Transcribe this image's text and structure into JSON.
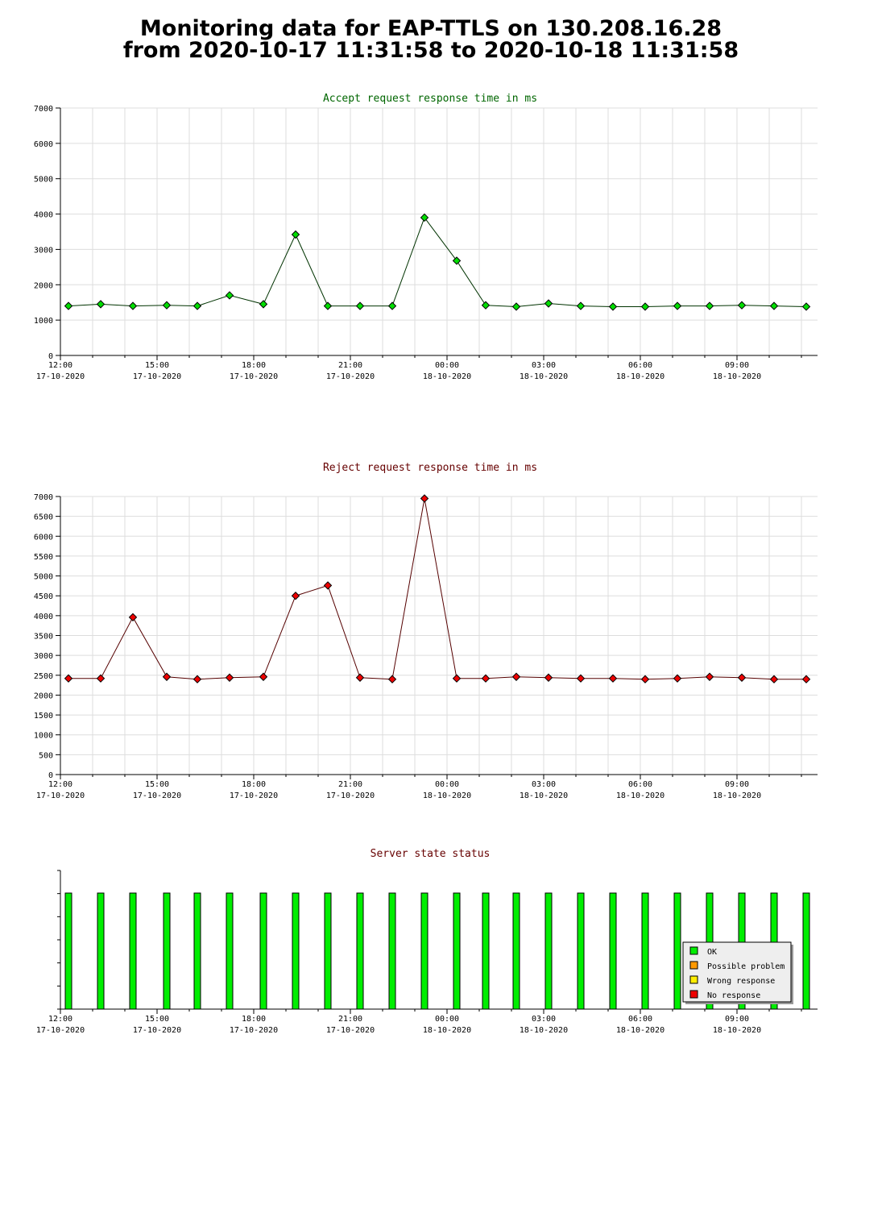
{
  "page": {
    "title_line1": "Monitoring data for EAP-TTLS on 130.208.16.28",
    "title_line2": "from 2020-10-17 11:31:58 to 2020-10-18 11:31:58"
  },
  "x_axis": {
    "ticks": [
      {
        "time": "12:00",
        "date": "17-10-2020",
        "hours": 0
      },
      {
        "time": "15:00",
        "date": "17-10-2020",
        "hours": 3
      },
      {
        "time": "18:00",
        "date": "17-10-2020",
        "hours": 6
      },
      {
        "time": "21:00",
        "date": "17-10-2020",
        "hours": 9
      },
      {
        "time": "00:00",
        "date": "18-10-2020",
        "hours": 12
      },
      {
        "time": "03:00",
        "date": "18-10-2020",
        "hours": 15
      },
      {
        "time": "06:00",
        "date": "18-10-2020",
        "hours": 18
      },
      {
        "time": "09:00",
        "date": "18-10-2020",
        "hours": 21
      }
    ]
  },
  "chart_data": [
    {
      "type": "line",
      "title": "Accept request response time in ms",
      "color": "#00dd00",
      "line_color": "#003300",
      "title_color": "#006600",
      "ylim": [
        0,
        7000
      ],
      "ytick_step": 1000,
      "grid": true,
      "x_hours": [
        0.25,
        1.25,
        2.25,
        3.3,
        4.25,
        5.25,
        6.3,
        7.3,
        8.3,
        9.3,
        10.3,
        11.3,
        12.3,
        13.2,
        14.15,
        15.15,
        16.15,
        17.15,
        18.15,
        19.15,
        20.15,
        21.15,
        22.15,
        23.15
      ],
      "values": [
        1400,
        1450,
        1400,
        1420,
        1400,
        1700,
        1450,
        3420,
        1400,
        1400,
        1400,
        3900,
        2680,
        1420,
        1380,
        1470,
        1400,
        1380,
        1380,
        1400,
        1400,
        1420,
        1400,
        1380
      ]
    },
    {
      "type": "line",
      "title": "Reject request response time in ms",
      "color": "#ee0000",
      "line_color": "#550000",
      "title_color": "#660000",
      "ylim": [
        0,
        7000
      ],
      "ytick_step": 500,
      "grid": true,
      "x_hours": [
        0.25,
        1.25,
        2.25,
        3.3,
        4.25,
        5.25,
        6.3,
        7.3,
        8.3,
        9.3,
        10.3,
        11.3,
        12.3,
        13.2,
        14.15,
        15.15,
        16.15,
        17.15,
        18.15,
        19.15,
        20.15,
        21.15,
        22.15,
        23.15
      ],
      "values": [
        2420,
        2420,
        3960,
        2460,
        2400,
        2440,
        2460,
        4500,
        4760,
        2440,
        2400,
        6950,
        2420,
        2420,
        2460,
        2440,
        2420,
        2420,
        2400,
        2420,
        2460,
        2440,
        2400,
        2400
      ]
    },
    {
      "type": "bar",
      "title": "Server state status",
      "title_color": "#660000",
      "x_hours": [
        0.25,
        1.25,
        2.25,
        3.3,
        4.25,
        5.25,
        6.3,
        7.3,
        8.3,
        9.3,
        10.3,
        11.3,
        12.3,
        13.2,
        14.15,
        15.15,
        16.15,
        17.15,
        18.15,
        19.15,
        20.15,
        21.15,
        22.15,
        23.15
      ],
      "states": [
        "OK",
        "OK",
        "OK",
        "OK",
        "OK",
        "OK",
        "OK",
        "OK",
        "OK",
        "OK",
        "OK",
        "OK",
        "OK",
        "OK",
        "OK",
        "OK",
        "OK",
        "OK",
        "OK",
        "OK",
        "OK",
        "OK",
        "OK",
        "OK"
      ],
      "legend": {
        "placement": "bottom-right",
        "items": [
          {
            "label": "OK",
            "color": "#00ee00"
          },
          {
            "label": "Possible problem",
            "color": "#ff9900"
          },
          {
            "label": "Wrong response",
            "color": "#ffee00"
          },
          {
            "label": "No response",
            "color": "#ee0000"
          }
        ]
      }
    }
  ]
}
